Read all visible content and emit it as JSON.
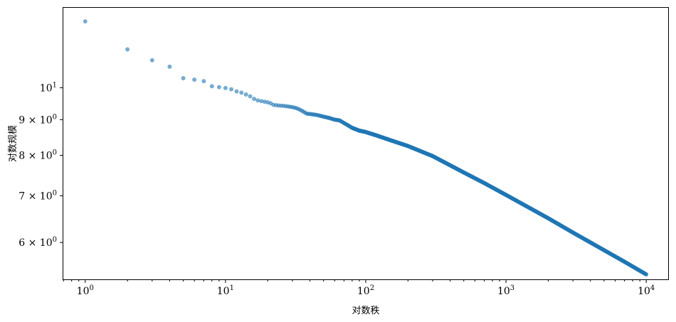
{
  "chart_data": {
    "type": "scatter",
    "title": "",
    "xlabel": "对数秩",
    "ylabel": "对数规模",
    "xscale": "log",
    "yscale": "log",
    "xlim": [
      0.69,
      14500
    ],
    "ylim": [
      5.3,
      13.05
    ],
    "grid": false,
    "point_color": "#1f77b4",
    "point_alpha": 0.6,
    "x_ticks": [
      {
        "value": 1,
        "base": "10",
        "exp": "0"
      },
      {
        "value": 10,
        "base": "10",
        "exp": "1"
      },
      {
        "value": 100,
        "base": "10",
        "exp": "2"
      },
      {
        "value": 1000,
        "base": "10",
        "exp": "3"
      },
      {
        "value": 10000,
        "base": "10",
        "exp": "4"
      }
    ],
    "y_ticks": [
      {
        "value": 6,
        "mantissa": "6",
        "base": "10",
        "exp": "0"
      },
      {
        "value": 7,
        "mantissa": "7",
        "base": "10",
        "exp": "0"
      },
      {
        "value": 8,
        "mantissa": "8",
        "base": "10",
        "exp": "0"
      },
      {
        "value": 9,
        "mantissa": "9",
        "base": "10",
        "exp": "0"
      },
      {
        "value": 10,
        "mantissa": "",
        "base": "10",
        "exp": "1"
      }
    ],
    "series": [
      {
        "points": [
          [
            1,
            12.45
          ],
          [
            2,
            11.35
          ],
          [
            3,
            10.95
          ],
          [
            4,
            10.72
          ],
          [
            5,
            10.32
          ],
          [
            6,
            10.27
          ],
          [
            7,
            10.22
          ],
          [
            8,
            10.05
          ],
          [
            9,
            10.02
          ],
          [
            10,
            9.99
          ],
          [
            11,
            9.95
          ],
          [
            12,
            9.88
          ],
          [
            13,
            9.84
          ],
          [
            14,
            9.78
          ],
          [
            15,
            9.72
          ],
          [
            16,
            9.64
          ],
          [
            17,
            9.59
          ],
          [
            18,
            9.57
          ],
          [
            19,
            9.55
          ],
          [
            20,
            9.53
          ],
          [
            21,
            9.5
          ],
          [
            22,
            9.45
          ],
          [
            24,
            9.43
          ],
          [
            26,
            9.42
          ],
          [
            28,
            9.4
          ],
          [
            30,
            9.38
          ],
          [
            32,
            9.35
          ],
          [
            34,
            9.3
          ],
          [
            36,
            9.24
          ],
          [
            38,
            9.18
          ],
          [
            40,
            9.17
          ],
          [
            45,
            9.14
          ],
          [
            50,
            9.09
          ],
          [
            55,
            9.05
          ],
          [
            60,
            9.0
          ],
          [
            65,
            8.98
          ],
          [
            70,
            8.9
          ],
          [
            75,
            8.83
          ],
          [
            80,
            8.76
          ],
          [
            90,
            8.68
          ],
          [
            100,
            8.64
          ],
          [
            120,
            8.54
          ],
          [
            150,
            8.41
          ],
          [
            200,
            8.25
          ],
          [
            300,
            7.98
          ],
          [
            500,
            7.56
          ],
          [
            700,
            7.3
          ],
          [
            1000,
            7.02
          ],
          [
            2000,
            6.5
          ],
          [
            3000,
            6.2
          ],
          [
            5000,
            5.85
          ],
          [
            7000,
            5.63
          ],
          [
            10000,
            5.4
          ]
        ]
      }
    ]
  }
}
